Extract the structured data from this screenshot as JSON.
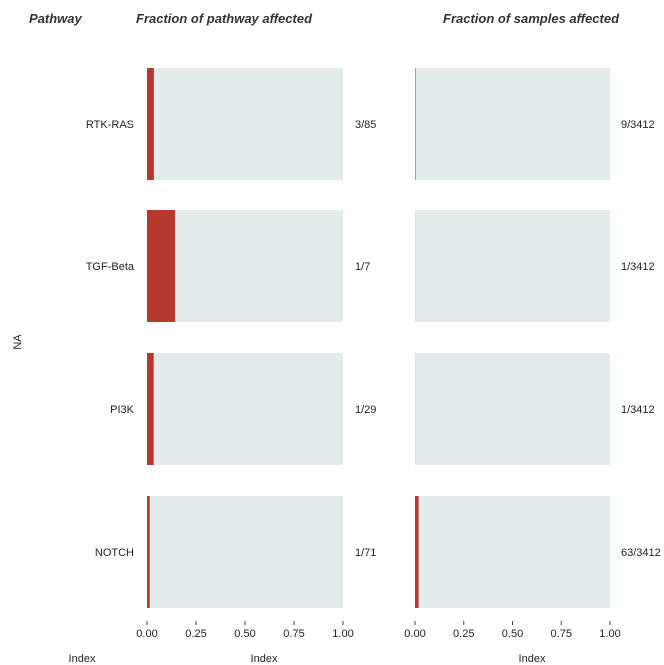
{
  "chart_data": {
    "type": "bar",
    "orientation": "horizontal",
    "column_header": "Pathway",
    "ylabel": "NA",
    "categories": [
      "RTK-RAS",
      "TGF-Beta",
      "PI3K",
      "NOTCH"
    ],
    "panels": [
      {
        "title": "Fraction of pathway affected",
        "xlabel": "Index",
        "xlim": [
          0,
          1
        ],
        "ticks": [
          "0.00",
          "0.25",
          "0.50",
          "0.75",
          "1.00"
        ],
        "values": [
          0.035,
          0.143,
          0.034,
          0.014
        ],
        "labels": [
          "3/85",
          "1/7",
          "1/29",
          "1/71"
        ]
      },
      {
        "title": "Fraction of samples affected",
        "xlabel": "Index",
        "xlim": [
          0,
          1
        ],
        "ticks": [
          "0.00",
          "0.25",
          "0.50",
          "0.75",
          "1.00"
        ],
        "values": [
          0.0026,
          0.0003,
          0.0003,
          0.0185
        ],
        "labels": [
          "9/3412",
          "1/3412",
          "1/3412",
          "63/3412"
        ]
      }
    ],
    "left_axis_xlabel": "Index",
    "grid": false,
    "legend": "none",
    "colors": {
      "fill": "#b5392f",
      "background": "#e3ebeb"
    }
  }
}
